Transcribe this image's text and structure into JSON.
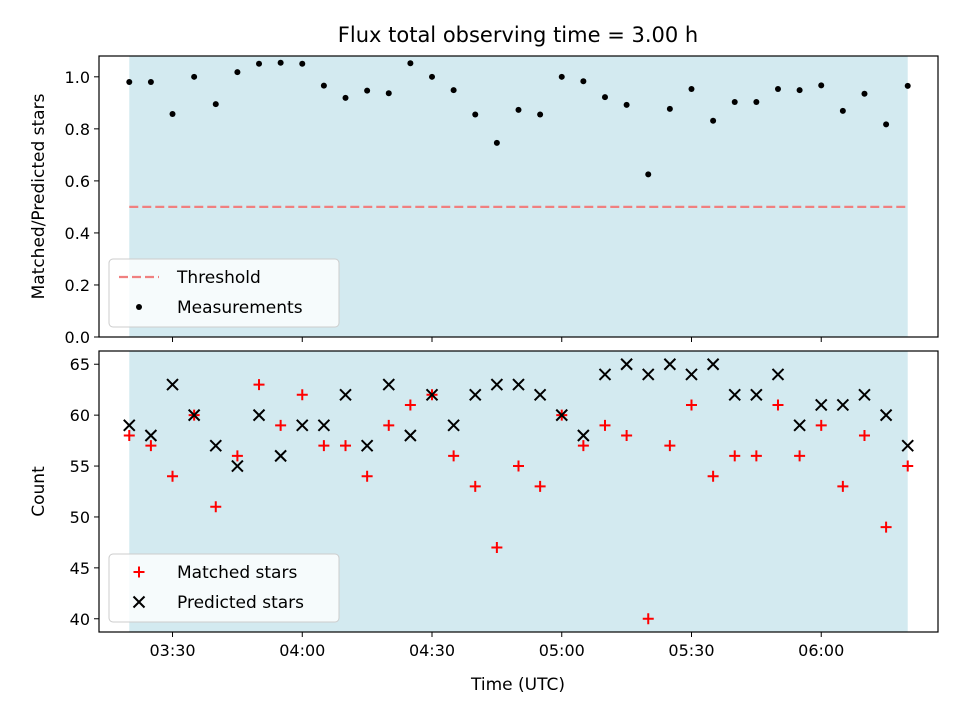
{
  "chart_data": {
    "title": "Flux total observing time = 3.00 h",
    "xlabel": "Time (UTC)",
    "x_ticks": [
      "03:30",
      "04:00",
      "04:30",
      "05:00",
      "05:30",
      "06:00"
    ],
    "observing_window": [
      "03:20",
      "06:20"
    ],
    "window_color": "#d3eaf0",
    "panels": [
      {
        "type": "scatter",
        "ylabel": "Matched/Predicted stars",
        "ylim": [
          0.0,
          1.08
        ],
        "y_ticks": [
          "0.0",
          "0.2",
          "0.4",
          "0.6",
          "0.8",
          "1.0"
        ],
        "legend": {
          "placement": "lower-left",
          "entries": [
            "Threshold",
            "Measurements"
          ]
        },
        "threshold": {
          "name": "Threshold",
          "value": 0.5,
          "color": "#f08080",
          "style": "dashed"
        },
        "series": [
          {
            "name": "Measurements",
            "marker": "dot",
            "color": "#000000",
            "x": [
              "03:20",
              "03:25",
              "03:30",
              "03:35",
              "03:40",
              "03:45",
              "03:50",
              "03:55",
              "04:00",
              "04:05",
              "04:10",
              "04:15",
              "04:20",
              "04:25",
              "04:30",
              "04:35",
              "04:40",
              "04:45",
              "04:50",
              "04:55",
              "05:00",
              "05:05",
              "05:10",
              "05:15",
              "05:20",
              "05:25",
              "05:30",
              "05:35",
              "05:40",
              "05:45",
              "05:50",
              "05:55",
              "06:00",
              "06:05",
              "06:10",
              "06:15",
              "06:20"
            ],
            "y": [
              0.98,
              0.98,
              0.857,
              1.0,
              0.895,
              1.018,
              1.05,
              1.054,
              1.05,
              0.966,
              0.919,
              0.947,
              0.937,
              1.052,
              1.0,
              0.949,
              0.855,
              0.746,
              0.873,
              0.855,
              1.0,
              0.983,
              0.922,
              0.892,
              0.625,
              0.877,
              0.953,
              0.831,
              0.903,
              0.903,
              0.953,
              0.949,
              0.967,
              0.869,
              0.935,
              0.817,
              0.965
            ]
          }
        ]
      },
      {
        "type": "scatter",
        "ylabel": "Count",
        "ylim": [
          38.7,
          66.3
        ],
        "y_ticks": [
          "40",
          "45",
          "50",
          "55",
          "60",
          "65"
        ],
        "legend": {
          "placement": "lower-left",
          "entries": [
            "Matched stars",
            "Predicted stars"
          ]
        },
        "series": [
          {
            "name": "Matched stars",
            "marker": "plus",
            "color": "#ff0000",
            "x": [
              "03:20",
              "03:25",
              "03:30",
              "03:35",
              "03:40",
              "03:45",
              "03:50",
              "03:55",
              "04:00",
              "04:05",
              "04:10",
              "04:15",
              "04:20",
              "04:25",
              "04:30",
              "04:35",
              "04:40",
              "04:45",
              "04:50",
              "04:55",
              "05:00",
              "05:05",
              "05:10",
              "05:15",
              "05:20",
              "05:25",
              "05:30",
              "05:35",
              "05:40",
              "05:45",
              "05:50",
              "05:55",
              "06:00",
              "06:05",
              "06:10",
              "06:15",
              "06:20"
            ],
            "y": [
              58,
              57,
              54,
              60,
              51,
              56,
              63,
              59,
              62,
              57,
              57,
              54,
              59,
              61,
              62,
              56,
              53,
              47,
              55,
              53,
              60,
              57,
              59,
              58,
              40,
              57,
              61,
              54,
              56,
              56,
              61,
              56,
              59,
              53,
              58,
              49,
              55
            ]
          },
          {
            "name": "Predicted stars",
            "marker": "x",
            "color": "#000000",
            "x": [
              "03:20",
              "03:25",
              "03:30",
              "03:35",
              "03:40",
              "03:45",
              "03:50",
              "03:55",
              "04:00",
              "04:05",
              "04:10",
              "04:15",
              "04:20",
              "04:25",
              "04:30",
              "04:35",
              "04:40",
              "04:45",
              "04:50",
              "04:55",
              "05:00",
              "05:05",
              "05:10",
              "05:15",
              "05:20",
              "05:25",
              "05:30",
              "05:35",
              "05:40",
              "05:45",
              "05:50",
              "05:55",
              "06:00",
              "06:05",
              "06:10",
              "06:15",
              "06:20"
            ],
            "y": [
              59,
              58,
              63,
              60,
              57,
              55,
              60,
              56,
              59,
              59,
              62,
              57,
              63,
              58,
              62,
              59,
              62,
              63,
              63,
              62,
              60,
              58,
              64,
              65,
              64,
              65,
              64,
              65,
              62,
              62,
              64,
              59,
              61,
              61,
              62,
              60,
              57
            ]
          }
        ]
      }
    ]
  }
}
